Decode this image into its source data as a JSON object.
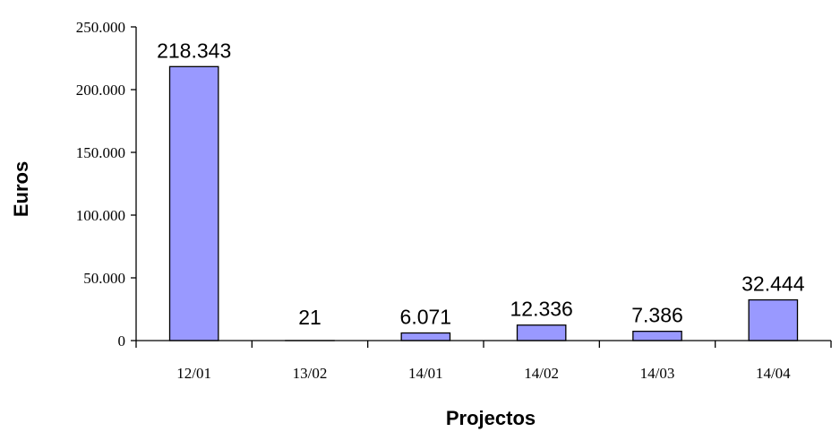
{
  "chart_data": {
    "type": "bar",
    "categories": [
      "12/01",
      "13/02",
      "14/01",
      "14/02",
      "14/03",
      "14/04"
    ],
    "values": [
      218343,
      21,
      6071,
      12336,
      7386,
      32444
    ],
    "data_labels": [
      "218.343",
      "21",
      "6.071",
      "12.336",
      "7.386",
      "32.444"
    ],
    "xlabel": "Projectos",
    "ylabel": "Euros",
    "ylim": [
      0,
      250000
    ],
    "yticks": [
      0,
      50000,
      100000,
      150000,
      200000,
      250000
    ],
    "ytick_labels": [
      "0",
      "50.000",
      "100.000",
      "150.000",
      "200.000",
      "250.000"
    ],
    "grid": false,
    "legend": "none",
    "bar_color": "#9999ff"
  }
}
